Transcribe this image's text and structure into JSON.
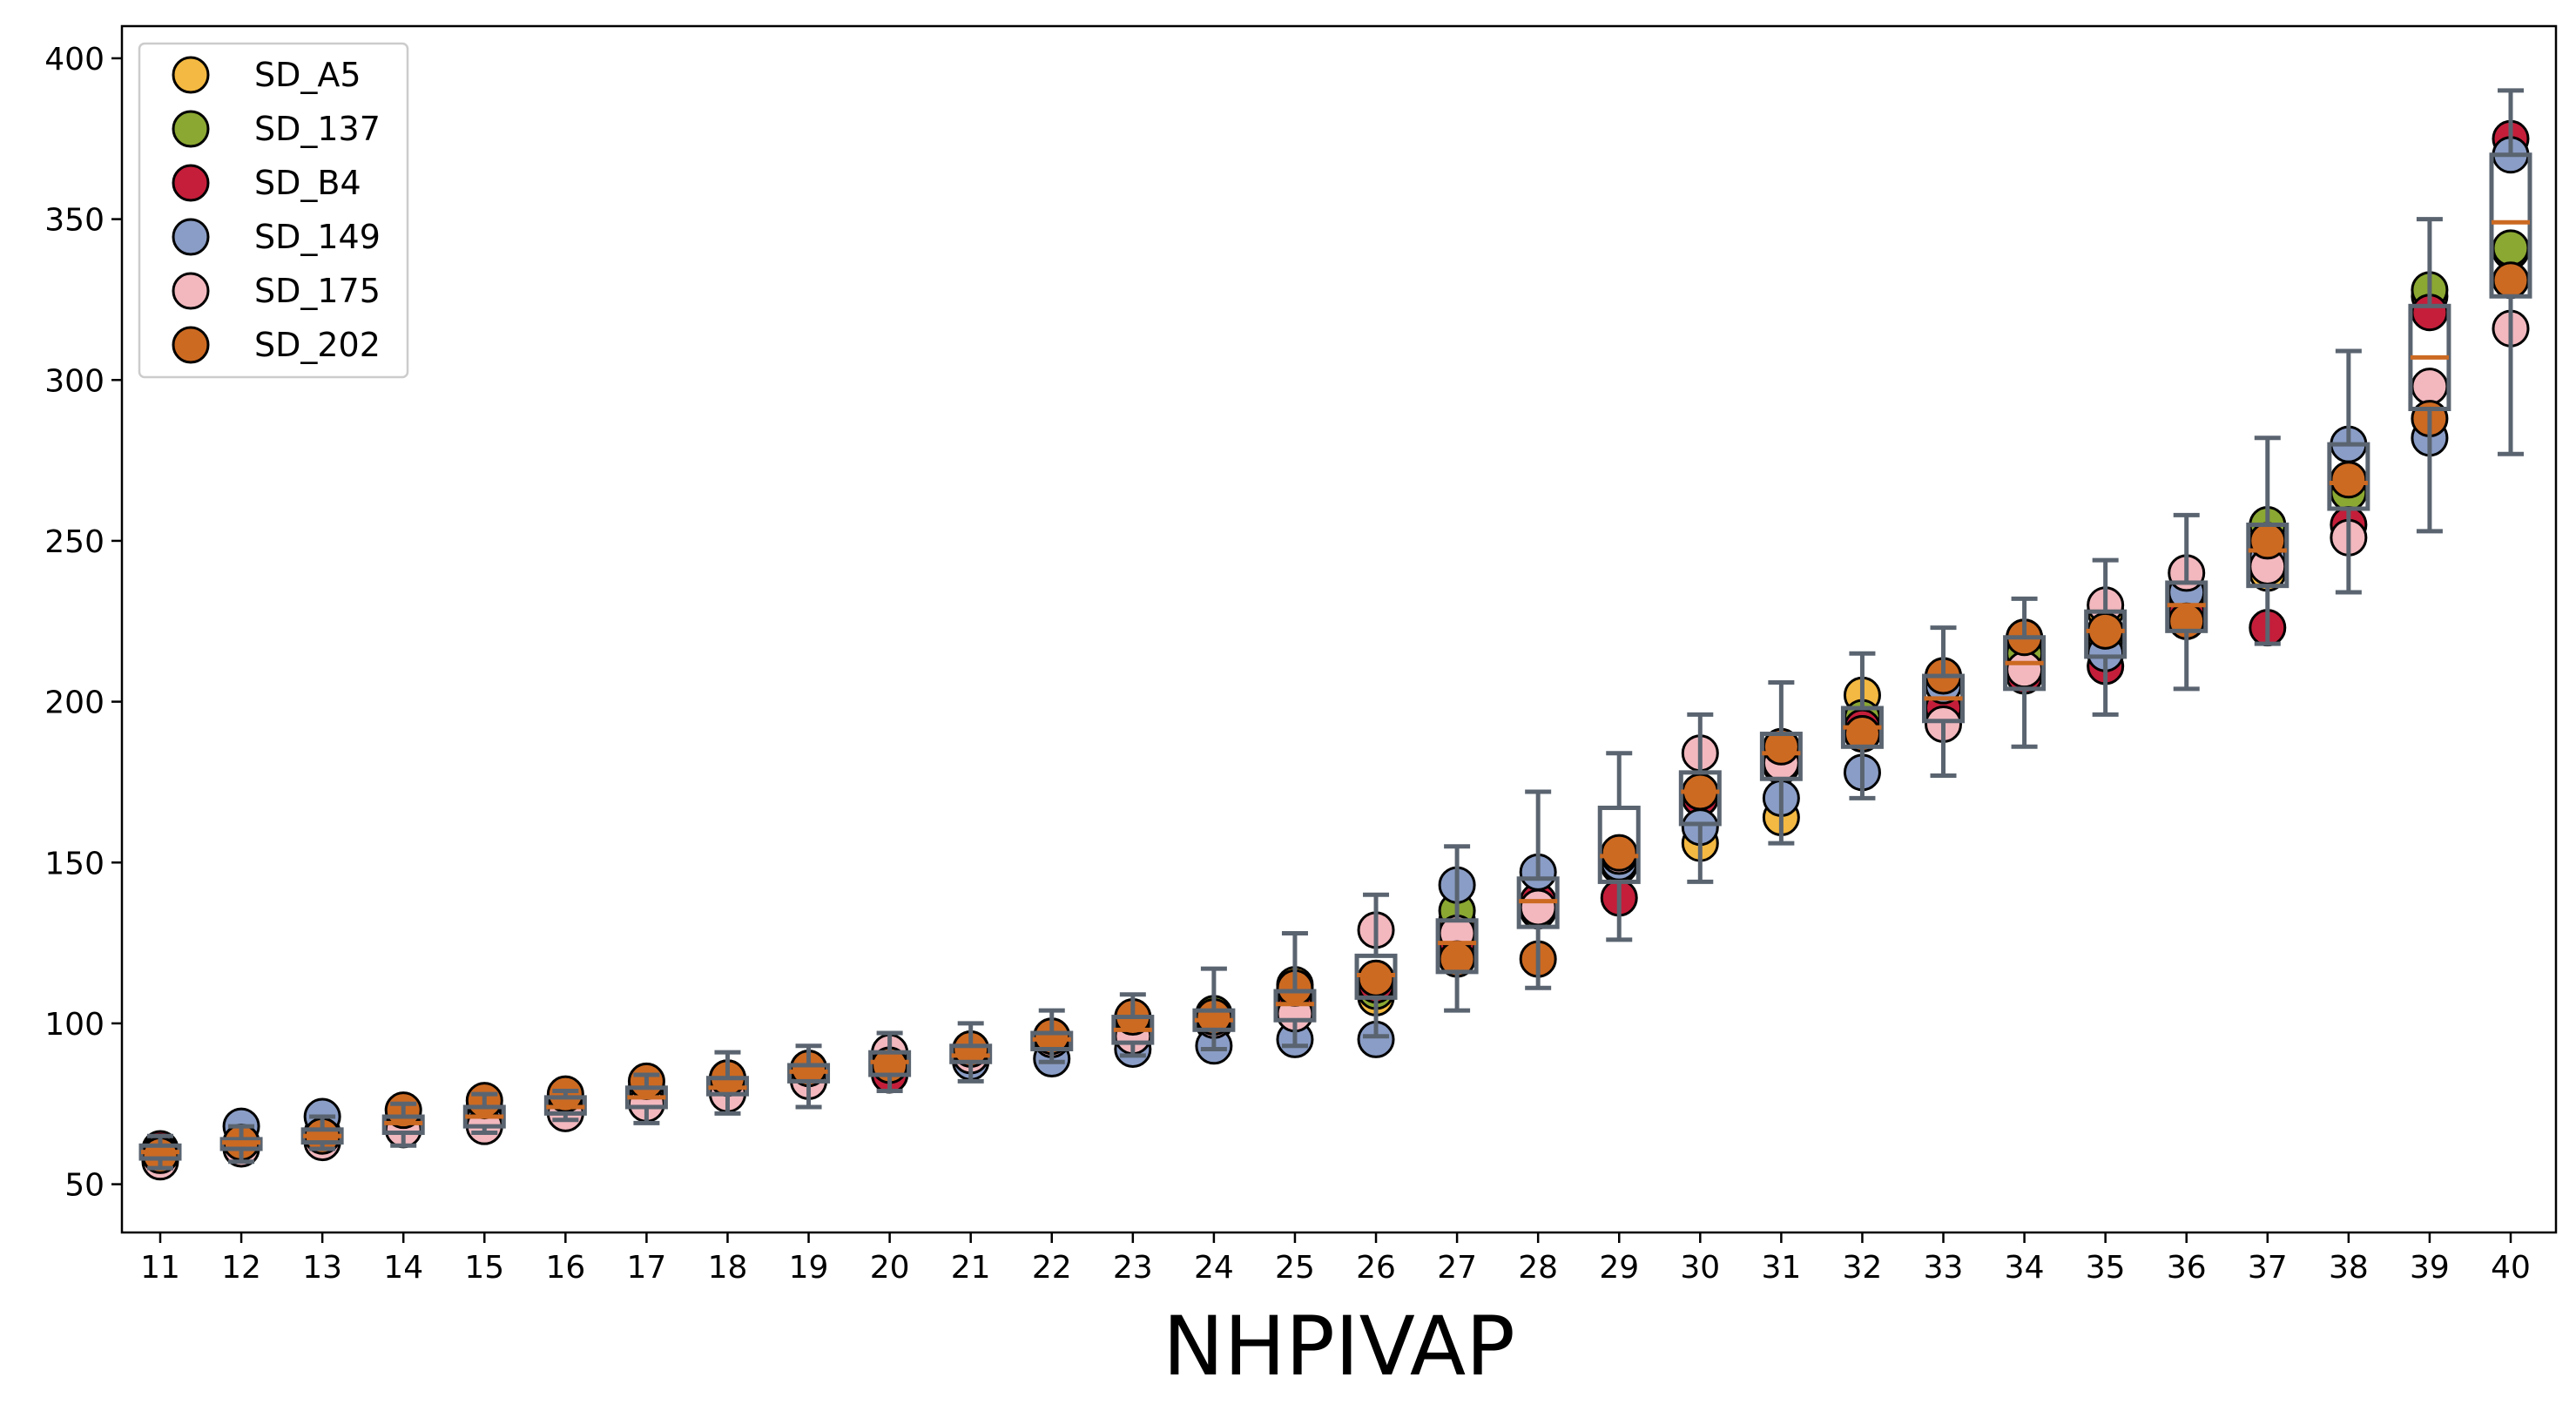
{
  "chart_data": {
    "type": "scatter",
    "title": "",
    "xlabel": "NHPIVAP",
    "ylabel": "",
    "categories": [
      "11",
      "12",
      "13",
      "14",
      "15",
      "16",
      "17",
      "18",
      "19",
      "20",
      "21",
      "22",
      "23",
      "24",
      "25",
      "26",
      "27",
      "28",
      "29",
      "30",
      "31",
      "32",
      "33",
      "34",
      "35",
      "36",
      "37",
      "38",
      "39",
      "40"
    ],
    "yticks": [
      "50",
      "100",
      "150",
      "200",
      "250",
      "300",
      "350",
      "400"
    ],
    "ylim": [
      35,
      410
    ],
    "grid": false,
    "legend_position": "top-left",
    "series": [
      {
        "name": "SD_A5",
        "color": "#F4B942",
        "values": [
          58,
          63,
          64,
          70,
          72,
          73,
          78,
          82,
          85,
          86,
          92,
          95,
          99,
          102,
          112,
          108,
          132,
          137,
          149,
          156,
          164,
          202,
          208,
          218,
          228,
          225,
          240,
          265,
          326,
          340
        ]
      },
      {
        "name": "SD_137",
        "color": "#8BA832",
        "values": [
          59,
          62,
          65,
          69,
          73,
          75,
          80,
          83,
          86,
          88,
          91,
          96,
          100,
          103,
          108,
          110,
          135,
          135,
          150,
          170,
          185,
          195,
          205,
          215,
          220,
          230,
          255,
          265,
          328,
          341
        ]
      },
      {
        "name": "SD_B4",
        "color": "#C41E3A",
        "values": [
          61,
          63,
          66,
          70,
          74,
          74,
          79,
          80,
          84,
          84,
          89,
          94,
          97,
          100,
          105,
          112,
          125,
          138,
          139,
          170,
          180,
          192,
          198,
          208,
          211,
          228,
          223,
          255,
          321,
          375
        ]
      },
      {
        "name": "SD_149",
        "color": "#8A9DC6",
        "values": [
          60,
          68,
          71,
          68,
          70,
          76,
          77,
          79,
          86,
          89,
          88,
          89,
          92,
          93,
          95,
          95,
          143,
          147,
          150,
          161,
          170,
          178,
          205,
          220,
          215,
          234,
          245,
          280,
          282,
          370
        ]
      },
      {
        "name": "SD_175",
        "color": "#F2B8BE",
        "values": [
          57,
          61,
          63,
          67,
          68,
          72,
          75,
          78,
          82,
          91,
          90,
          95,
          96,
          101,
          103,
          129,
          128,
          136,
          152,
          184,
          181,
          190,
          193,
          210,
          230,
          240,
          242,
          251,
          298,
          316
        ]
      },
      {
        "name": "SD_202",
        "color": "#CC6A22",
        "values": [
          59,
          63,
          65,
          73,
          76,
          78,
          82,
          83,
          86,
          87,
          92,
          96,
          102,
          102,
          111,
          114,
          120,
          120,
          153,
          172,
          186,
          190,
          208,
          220,
          222,
          225,
          250,
          269,
          288,
          331
        ]
      }
    ],
    "boxes": [
      {
        "whisker_low": 55,
        "q1": 58,
        "median": 60,
        "q3": 62,
        "whisker_high": 65
      },
      {
        "whisker_low": 57,
        "q1": 61,
        "median": 63,
        "q3": 64,
        "whisker_high": 68
      },
      {
        "whisker_low": 61,
        "q1": 63,
        "median": 65,
        "q3": 67,
        "whisker_high": 71
      },
      {
        "whisker_low": 62,
        "q1": 66,
        "median": 69,
        "q3": 71,
        "whisker_high": 75
      },
      {
        "whisker_low": 66,
        "q1": 68,
        "median": 71,
        "q3": 74,
        "whisker_high": 78
      },
      {
        "whisker_low": 70,
        "q1": 72,
        "median": 74,
        "q3": 77,
        "whisker_high": 79
      },
      {
        "whisker_low": 69,
        "q1": 74,
        "median": 77,
        "q3": 80,
        "whisker_high": 84
      },
      {
        "whisker_low": 72,
        "q1": 78,
        "median": 80,
        "q3": 83,
        "whisker_high": 91
      },
      {
        "whisker_low": 74,
        "q1": 82,
        "median": 85,
        "q3": 87,
        "whisker_high": 93
      },
      {
        "whisker_low": 79,
        "q1": 84,
        "median": 88,
        "q3": 91,
        "whisker_high": 97
      },
      {
        "whisker_low": 82,
        "q1": 88,
        "median": 90,
        "q3": 93,
        "whisker_high": 100
      },
      {
        "whisker_low": 88,
        "q1": 92,
        "median": 95,
        "q3": 97,
        "whisker_high": 104
      },
      {
        "whisker_low": 90,
        "q1": 94,
        "median": 98,
        "q3": 102,
        "whisker_high": 109
      },
      {
        "whisker_low": 92,
        "q1": 98,
        "median": 101,
        "q3": 104,
        "whisker_high": 117
      },
      {
        "whisker_low": 93,
        "q1": 101,
        "median": 106,
        "q3": 110,
        "whisker_high": 128
      },
      {
        "whisker_low": 96,
        "q1": 108,
        "median": 115,
        "q3": 121,
        "whisker_high": 140
      },
      {
        "whisker_low": 104,
        "q1": 116,
        "median": 125,
        "q3": 132,
        "whisker_high": 155
      },
      {
        "whisker_low": 111,
        "q1": 130,
        "median": 138,
        "q3": 145,
        "whisker_high": 172
      },
      {
        "whisker_low": 126,
        "q1": 144,
        "median": 152,
        "q3": 167,
        "whisker_high": 184
      },
      {
        "whisker_low": 144,
        "q1": 162,
        "median": 172,
        "q3": 178,
        "whisker_high": 196
      },
      {
        "whisker_low": 156,
        "q1": 176,
        "median": 184,
        "q3": 190,
        "whisker_high": 206
      },
      {
        "whisker_low": 170,
        "q1": 186,
        "median": 192,
        "q3": 198,
        "whisker_high": 215
      },
      {
        "whisker_low": 177,
        "q1": 194,
        "median": 201,
        "q3": 208,
        "whisker_high": 223
      },
      {
        "whisker_low": 186,
        "q1": 204,
        "median": 212,
        "q3": 220,
        "whisker_high": 232
      },
      {
        "whisker_low": 196,
        "q1": 214,
        "median": 222,
        "q3": 228,
        "whisker_high": 244
      },
      {
        "whisker_low": 204,
        "q1": 222,
        "median": 230,
        "q3": 237,
        "whisker_high": 258
      },
      {
        "whisker_low": 218,
        "q1": 236,
        "median": 247,
        "q3": 255,
        "whisker_high": 282
      },
      {
        "whisker_low": 234,
        "q1": 260,
        "median": 268,
        "q3": 280,
        "whisker_high": 309
      },
      {
        "whisker_low": 253,
        "q1": 291,
        "median": 307,
        "q3": 323,
        "whisker_high": 350
      },
      {
        "whisker_low": 277,
        "q1": 326,
        "median": 349,
        "q3": 370,
        "whisker_high": 390
      }
    ],
    "box_color": "#5A6470",
    "median_color": "#CC6A22"
  }
}
